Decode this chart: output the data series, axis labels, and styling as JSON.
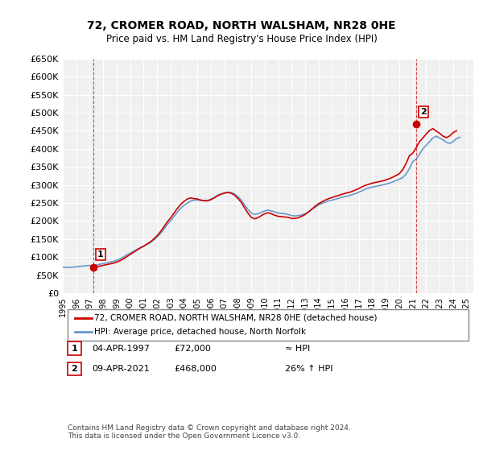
{
  "title": "72, CROMER ROAD, NORTH WALSHAM, NR28 0HE",
  "subtitle": "Price paid vs. HM Land Registry's House Price Index (HPI)",
  "ylabel": "",
  "ylim": [
    0,
    650000
  ],
  "yticks": [
    0,
    50000,
    100000,
    150000,
    200000,
    250000,
    300000,
    350000,
    400000,
    450000,
    500000,
    550000,
    600000,
    650000
  ],
  "ytick_labels": [
    "£0",
    "£50K",
    "£100K",
    "£150K",
    "£200K",
    "£250K",
    "£300K",
    "£350K",
    "£400K",
    "£450K",
    "£500K",
    "£550K",
    "£600K",
    "£650K"
  ],
  "xlim_start": 1995.0,
  "xlim_end": 2025.5,
  "background_color": "#ffffff",
  "plot_bg_color": "#f0f0f0",
  "grid_color": "#ffffff",
  "sale1_x": 1997.26,
  "sale1_y": 72000,
  "sale1_label": "1",
  "sale1_date": "04-APR-1997",
  "sale1_price": "£72,000",
  "sale1_vs": "≈ HPI",
  "sale2_x": 2021.27,
  "sale2_y": 468000,
  "sale2_label": "2",
  "sale2_date": "09-APR-2021",
  "sale2_price": "£468,000",
  "sale2_vs": "26% ↑ HPI",
  "red_line_color": "#cc0000",
  "blue_line_color": "#6699cc",
  "legend_label_red": "72, CROMER ROAD, NORTH WALSHAM, NR28 0HE (detached house)",
  "legend_label_blue": "HPI: Average price, detached house, North Norfolk",
  "footnote": "Contains HM Land Registry data © Crown copyright and database right 2024.\nThis data is licensed under the Open Government Licence v3.0.",
  "hpi_years": [
    1995.0,
    1995.25,
    1995.5,
    1995.75,
    1996.0,
    1996.25,
    1996.5,
    1996.75,
    1997.0,
    1997.25,
    1997.5,
    1997.75,
    1998.0,
    1998.25,
    1998.5,
    1998.75,
    1999.0,
    1999.25,
    1999.5,
    1999.75,
    2000.0,
    2000.25,
    2000.5,
    2000.75,
    2001.0,
    2001.25,
    2001.5,
    2001.75,
    2002.0,
    2002.25,
    2002.5,
    2002.75,
    2003.0,
    2003.25,
    2003.5,
    2003.75,
    2004.0,
    2004.25,
    2004.5,
    2004.75,
    2005.0,
    2005.25,
    2005.5,
    2005.75,
    2006.0,
    2006.25,
    2006.5,
    2006.75,
    2007.0,
    2007.25,
    2007.5,
    2007.75,
    2008.0,
    2008.25,
    2008.5,
    2008.75,
    2009.0,
    2009.25,
    2009.5,
    2009.75,
    2010.0,
    2010.25,
    2010.5,
    2010.75,
    2011.0,
    2011.25,
    2011.5,
    2011.75,
    2012.0,
    2012.25,
    2012.5,
    2012.75,
    2013.0,
    2013.25,
    2013.5,
    2013.75,
    2014.0,
    2014.25,
    2014.5,
    2014.75,
    2015.0,
    2015.25,
    2015.5,
    2015.75,
    2016.0,
    2016.25,
    2016.5,
    2016.75,
    2017.0,
    2017.25,
    2017.5,
    2017.75,
    2018.0,
    2018.25,
    2018.5,
    2018.75,
    2019.0,
    2019.25,
    2019.5,
    2019.75,
    2020.0,
    2020.25,
    2020.5,
    2020.75,
    2021.0,
    2021.25,
    2021.5,
    2021.75,
    2022.0,
    2022.25,
    2022.5,
    2022.75,
    2023.0,
    2023.25,
    2023.5,
    2023.75,
    2024.0,
    2024.25,
    2024.5
  ],
  "hpi_values": [
    72000,
    71000,
    71500,
    72000,
    73000,
    74000,
    75000,
    76000,
    77000,
    72000,
    78000,
    80000,
    82000,
    84000,
    86000,
    88000,
    91000,
    95000,
    100000,
    106000,
    111000,
    116000,
    121000,
    126000,
    130000,
    135000,
    140000,
    147000,
    155000,
    165000,
    177000,
    190000,
    200000,
    212000,
    224000,
    235000,
    243000,
    250000,
    255000,
    258000,
    258000,
    257000,
    256000,
    257000,
    260000,
    265000,
    271000,
    275000,
    278000,
    280000,
    279000,
    275000,
    268000,
    258000,
    245000,
    232000,
    222000,
    218000,
    220000,
    224000,
    228000,
    230000,
    228000,
    225000,
    222000,
    221000,
    220000,
    218000,
    215000,
    214000,
    215000,
    217000,
    220000,
    225000,
    232000,
    238000,
    244000,
    249000,
    252000,
    256000,
    258000,
    260000,
    263000,
    266000,
    268000,
    270000,
    273000,
    276000,
    280000,
    284000,
    289000,
    292000,
    294000,
    296000,
    298000,
    300000,
    302000,
    305000,
    308000,
    312000,
    316000,
    320000,
    330000,
    345000,
    365000,
    371000,
    385000,
    400000,
    410000,
    420000,
    430000,
    435000,
    430000,
    425000,
    418000,
    415000,
    420000,
    428000,
    432000
  ],
  "red_years": [
    1995.0,
    1995.25,
    1995.5,
    1995.75,
    1996.0,
    1996.25,
    1996.5,
    1996.75,
    1997.0,
    1997.25,
    1997.5,
    1997.75,
    1998.0,
    1998.25,
    1998.5,
    1998.75,
    1999.0,
    1999.25,
    1999.5,
    1999.75,
    2000.0,
    2000.25,
    2000.5,
    2000.75,
    2001.0,
    2001.25,
    2001.5,
    2001.75,
    2002.0,
    2002.25,
    2002.5,
    2002.75,
    2003.0,
    2003.25,
    2003.5,
    2003.75,
    2004.0,
    2004.25,
    2004.5,
    2004.75,
    2005.0,
    2005.25,
    2005.5,
    2005.75,
    2006.0,
    2006.25,
    2006.5,
    2006.75,
    2007.0,
    2007.25,
    2007.5,
    2007.75,
    2008.0,
    2008.25,
    2008.5,
    2008.75,
    2009.0,
    2009.25,
    2009.5,
    2009.75,
    2010.0,
    2010.25,
    2010.5,
    2010.75,
    2011.0,
    2011.25,
    2011.5,
    2011.75,
    2012.0,
    2012.25,
    2012.5,
    2012.75,
    2013.0,
    2013.25,
    2013.5,
    2013.75,
    2014.0,
    2014.25,
    2014.5,
    2014.75,
    2015.0,
    2015.25,
    2015.5,
    2015.75,
    2016.0,
    2016.25,
    2016.5,
    2016.75,
    2017.0,
    2017.25,
    2017.5,
    2017.75,
    2018.0,
    2018.25,
    2018.5,
    2018.75,
    2019.0,
    2019.25,
    2019.5,
    2019.75,
    2020.0,
    2020.25,
    2020.5,
    2020.75,
    2021.0,
    2021.25,
    2021.5,
    2021.75,
    2022.0,
    2022.25,
    2022.5,
    2022.75,
    2023.0,
    2023.25,
    2023.5,
    2023.75,
    2024.0,
    2024.25,
    2024.5
  ],
  "red_values": [
    null,
    null,
    null,
    null,
    null,
    null,
    null,
    null,
    null,
    72000,
    73000,
    75000,
    77000,
    79000,
    81000,
    83000,
    86000,
    90000,
    95000,
    101000,
    107000,
    113000,
    119000,
    125000,
    130000,
    136000,
    142000,
    150000,
    159000,
    170000,
    183000,
    197000,
    208000,
    221000,
    234000,
    246000,
    254000,
    261000,
    264000,
    262000,
    261000,
    258000,
    256000,
    256000,
    259000,
    264000,
    270000,
    274000,
    277000,
    279000,
    277000,
    272000,
    263000,
    252000,
    237000,
    222000,
    210000,
    206000,
    209000,
    215000,
    220000,
    223000,
    220000,
    216000,
    213000,
    212000,
    211000,
    210000,
    207000,
    207000,
    209000,
    213000,
    218000,
    225000,
    233000,
    241000,
    248000,
    253000,
    258000,
    262000,
    265000,
    268000,
    271000,
    274000,
    277000,
    279000,
    282000,
    286000,
    290000,
    295000,
    299000,
    302000,
    305000,
    307000,
    309000,
    311000,
    314000,
    317000,
    321000,
    326000,
    331000,
    342000,
    359000,
    381000,
    388000,
    403000,
    420000,
    430000,
    441000,
    451000,
    456000,
    449000,
    443000,
    435000,
    431000,
    436000,
    445000,
    450000
  ]
}
